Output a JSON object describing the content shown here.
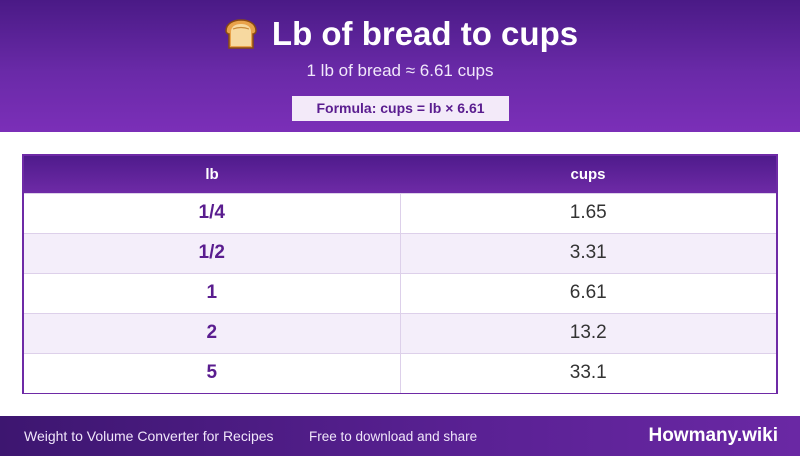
{
  "header": {
    "icon": "bread-icon",
    "title": "Lb of bread to cups",
    "subtitle": "1 lb of bread ≈ 6.61 cups",
    "formula": "Formula: cups = lb × 6.61"
  },
  "table": {
    "columns": [
      "lb",
      "cups"
    ],
    "rows": [
      {
        "lb": "1/4",
        "cups": "1.65"
      },
      {
        "lb": "1/2",
        "cups": "3.31"
      },
      {
        "lb": "1",
        "cups": "6.61"
      },
      {
        "lb": "2",
        "cups": "13.2"
      },
      {
        "lb": "5",
        "cups": "33.1"
      }
    ]
  },
  "footer": {
    "left_text": "Weight to Volume Converter for Recipes",
    "mid_text": "Free to download and share",
    "brand": "Howmany.wiki"
  },
  "colors": {
    "primary": "#6a2aa8",
    "accent_text": "#5a1d8f",
    "row_alt": "#f4eefa"
  }
}
